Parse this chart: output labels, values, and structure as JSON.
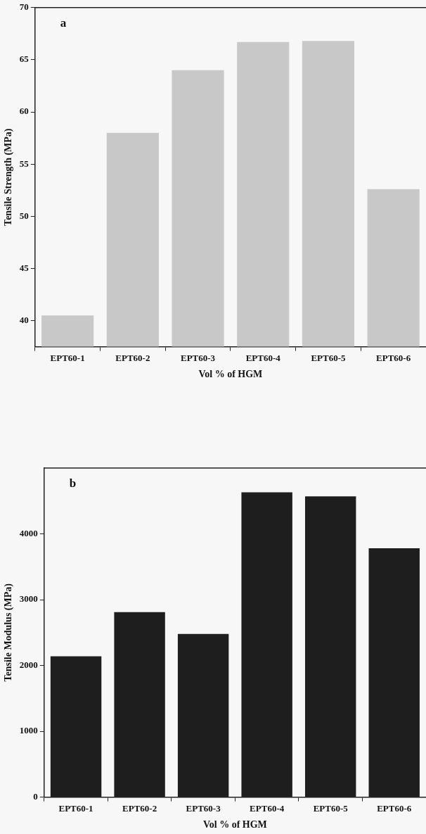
{
  "chart_data": [
    {
      "type": "bar",
      "annotations": [
        "a"
      ],
      "ylabel": "Tensile Strength (MPa)",
      "xlabel": "Vol % of HGM",
      "categories": [
        "EPT60-1",
        "EPT60-2",
        "EPT60-3",
        "EPT60-4",
        "EPT60-5",
        "EPT60-6"
      ],
      "values": [
        40.5,
        58,
        64,
        66.7,
        66.8,
        52.6
      ],
      "color": "#c8c8c8",
      "ylim": [
        37.5,
        70
      ],
      "yticks": [
        40,
        45,
        50,
        55,
        60,
        65,
        70
      ],
      "grid": false,
      "legend": false
    },
    {
      "type": "bar",
      "annotations": [
        "b"
      ],
      "ylabel": "Tensile Modulus (MPa)",
      "xlabel": "Vol % of HGM",
      "categories": [
        "EPT60-1",
        "EPT60-2",
        "EPT60-3",
        "EPT60-4",
        "EPT60-5",
        "EPT60-6"
      ],
      "values": [
        2140,
        2810,
        2480,
        4630,
        4570,
        3780
      ],
      "color": "#1e1e1e",
      "ylim": [
        0,
        5000
      ],
      "yticks": [
        0,
        1000,
        2000,
        3000,
        4000
      ],
      "grid": false,
      "legend": false
    }
  ]
}
